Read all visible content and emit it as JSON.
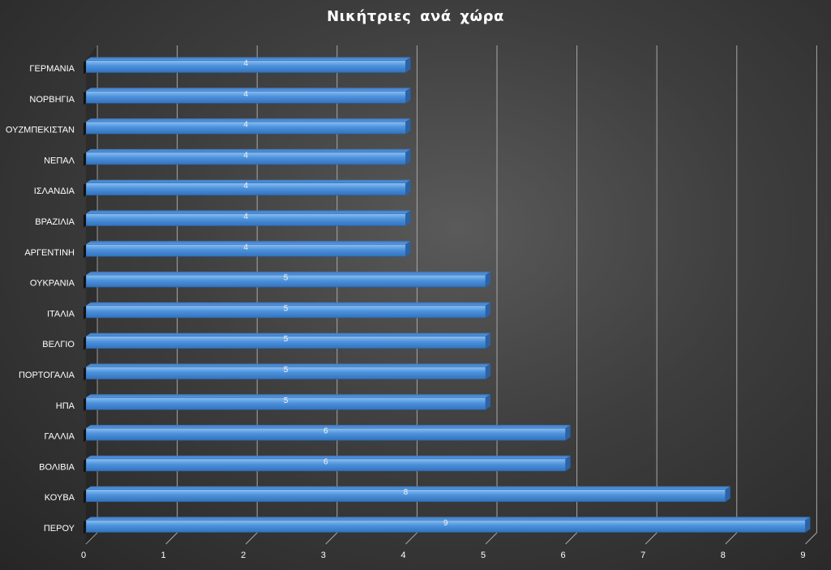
{
  "chart_data": {
    "type": "bar",
    "orientation": "horizontal",
    "title": "Νικήτριες ανά χώρα",
    "categories": [
      "ΓΕΡΜΑΝΙΑ",
      "ΝΟΡΒΗΓΙΑ",
      "ΟΥΖΜΠΕΚΙΣΤΑΝ",
      "ΝΕΠΑΛ",
      "ΙΣΛΑΝΔΙΑ",
      "ΒΡΑΖΙΛΙΑ",
      "ΑΡΓΕΝΤΙΝΗ",
      "ΟΥΚΡΑΝΙΑ",
      "ΙΤΑΛΙΑ",
      "ΒΕΛΓΙΟ",
      "ΠΟΡΤΟΓΑΛΙΑ",
      "ΗΠΑ",
      "ΓΑΛΛΙΑ",
      "ΒΟΛΙΒΙΑ",
      "ΚΟΥΒΑ",
      "ΠΕΡΟΥ"
    ],
    "values": [
      4,
      4,
      4,
      4,
      4,
      4,
      4,
      5,
      5,
      5,
      5,
      5,
      6,
      6,
      8,
      9
    ],
    "xlim": [
      0,
      9
    ],
    "xticks": [
      "0",
      "1",
      "2",
      "3",
      "4",
      "5",
      "6",
      "7",
      "8",
      "9"
    ],
    "grid": "vertical",
    "legend": "none",
    "style": "3d",
    "colors": {
      "bar": "#4a8fd9",
      "bar_light": "#7fb6f0",
      "bar_dark": "#2c63a6",
      "grid": "#a8a8a8",
      "text": "#ffffff"
    }
  }
}
